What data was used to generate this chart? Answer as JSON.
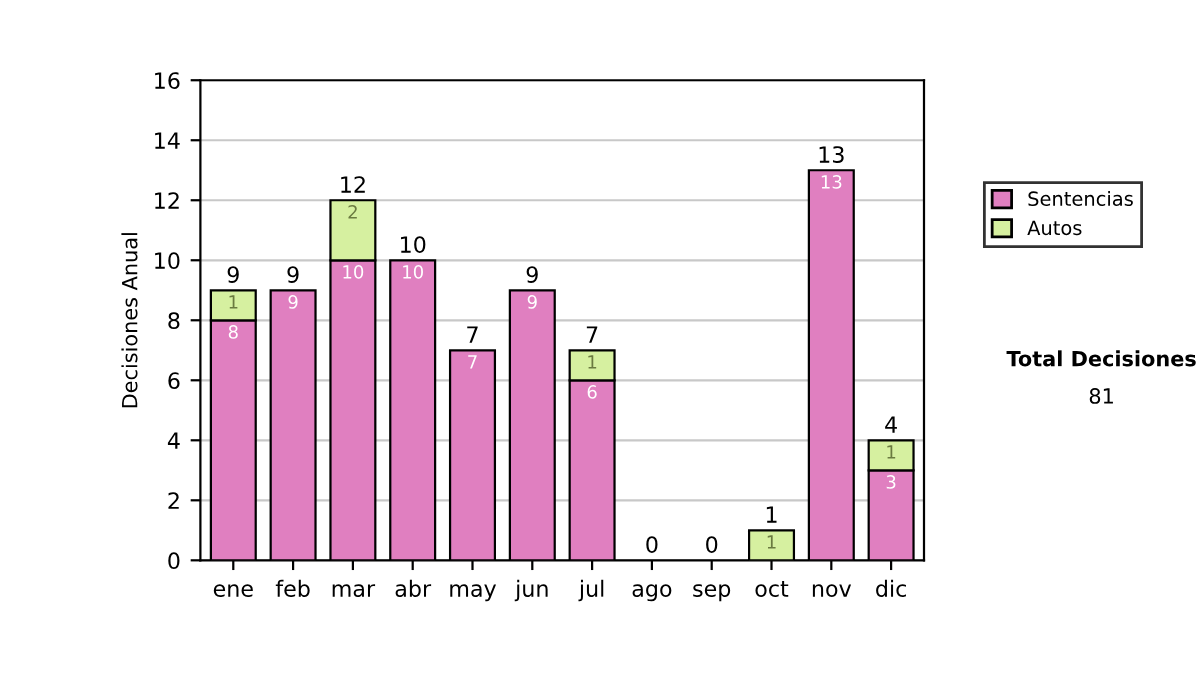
{
  "chart_data": {
    "type": "bar",
    "stacked": true,
    "ylabel": "Decisiones Anual",
    "categories": [
      "ene",
      "feb",
      "mar",
      "abr",
      "may",
      "jun",
      "jul",
      "ago",
      "sep",
      "oct",
      "nov",
      "dic"
    ],
    "series": [
      {
        "name": "Sentencias",
        "color": "#e07fc0",
        "values": [
          8,
          9,
          10,
          10,
          7,
          9,
          6,
          0,
          0,
          0,
          13,
          3
        ],
        "value_labels": [
          "8",
          "9",
          "10",
          "10",
          "7",
          "9",
          "6",
          null,
          null,
          null,
          "13",
          "3"
        ]
      },
      {
        "name": "Autos",
        "color": "#d6f0a0",
        "values": [
          1,
          0,
          2,
          0,
          0,
          0,
          1,
          0,
          0,
          1,
          0,
          1
        ],
        "value_labels": [
          "1",
          null,
          "2",
          null,
          null,
          null,
          "1",
          null,
          null,
          "1",
          null,
          "1"
        ]
      }
    ],
    "totals": [
      "9",
      "9",
      "12",
      "10",
      "7",
      "9",
      "7",
      "0",
      "0",
      "1",
      "13",
      "4"
    ],
    "ylim": [
      0,
      16
    ],
    "yticks": [
      0,
      2,
      4,
      6,
      8,
      10,
      12,
      14,
      16
    ],
    "grid": "y",
    "legend": "right",
    "annotations": [
      "Total Decisiones",
      "81"
    ]
  }
}
